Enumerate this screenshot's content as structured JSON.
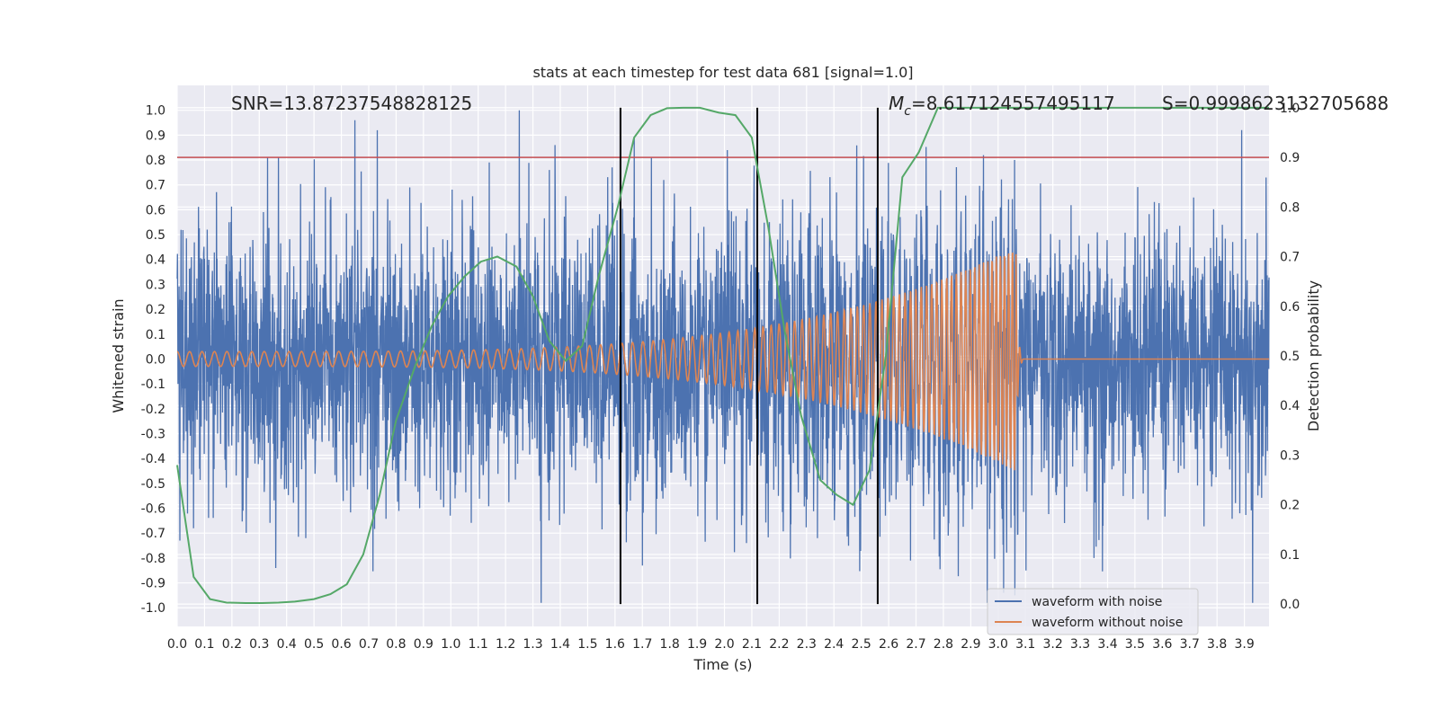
{
  "chart_data": {
    "type": "line",
    "title": "stats at each timestep for test data 681 [signal=1.0]",
    "xlabel": "Time (s)",
    "ylabel": "Whitened strain",
    "y2label": "Detection probability",
    "xlim": [
      0.0,
      3.99
    ],
    "ylim": [
      -1.075,
      1.1
    ],
    "y2lim": [
      -0.045,
      1.045
    ],
    "xticks": [
      0.0,
      0.1,
      0.2,
      0.3,
      0.4,
      0.5,
      0.6,
      0.7,
      0.8,
      0.9,
      1.0,
      1.1,
      1.2,
      1.3,
      1.4,
      1.5,
      1.6,
      1.7,
      1.8,
      1.9,
      2.0,
      2.1,
      2.2,
      2.3,
      2.4,
      2.5,
      2.6,
      2.7,
      2.8,
      2.9,
      3.0,
      3.1,
      3.2,
      3.3,
      3.4,
      3.5,
      3.6,
      3.7,
      3.8,
      3.9
    ],
    "yticks": [
      -1.0,
      -0.9,
      -0.8,
      -0.7,
      -0.6,
      -0.5,
      -0.4,
      -0.3,
      -0.2,
      -0.1,
      0.0,
      0.1,
      0.2,
      0.3,
      0.4,
      0.5,
      0.6,
      0.7,
      0.8,
      0.9,
      1.0
    ],
    "y2ticks": [
      0.0,
      0.1,
      0.2,
      0.3,
      0.4,
      0.5,
      0.6,
      0.7,
      0.8,
      0.9,
      1.0
    ],
    "grid": true,
    "legend_position": "lower-right",
    "annotations": {
      "snr": "SNR=13.87237548828125",
      "mc_symbol": "M",
      "mc_sub": "c",
      "mc_value": "=8.617124557495117",
      "s": "S=0.9998623132705688"
    },
    "threshold": {
      "y2": 0.9,
      "color": "#c44e52"
    },
    "vertical_lines": [
      1.62,
      2.12,
      2.56
    ],
    "series": [
      {
        "name": "waveform with noise",
        "color": "#4c72b0",
        "kind": "noise",
        "noise_amplitude": 0.42,
        "peaks": [
          [
            0.01,
            -0.73
          ],
          [
            0.06,
            -0.68
          ],
          [
            0.11,
            0.52
          ],
          [
            0.19,
            0.55
          ],
          [
            0.24,
            -0.61
          ],
          [
            0.33,
            0.81
          ],
          [
            0.36,
            -0.84
          ],
          [
            0.37,
            0.81
          ],
          [
            0.47,
            -0.72
          ],
          [
            0.56,
            0.64
          ],
          [
            0.65,
            0.96
          ],
          [
            0.73,
            -0.59
          ],
          [
            0.85,
            0.69
          ],
          [
            1.14,
            0.79
          ],
          [
            1.25,
            1.0
          ],
          [
            1.33,
            -0.98
          ],
          [
            1.36,
            0.76
          ],
          [
            1.67,
            0.89
          ],
          [
            1.7,
            -0.83
          ],
          [
            2.01,
            0.84
          ],
          [
            2.08,
            -0.74
          ],
          [
            2.34,
            -0.72
          ],
          [
            2.68,
            -0.81
          ],
          [
            2.96,
            -0.98
          ],
          [
            3.02,
            -0.94
          ],
          [
            3.06,
            0.8
          ],
          [
            3.35,
            -0.8
          ],
          [
            3.89,
            0.92
          ],
          [
            3.93,
            -0.98
          ]
        ],
        "x_range": [
          0.0,
          3.99
        ]
      },
      {
        "name": "waveform without noise",
        "color": "#dd8452",
        "kind": "chirp",
        "amplitude_start": 0.03,
        "amplitude_end": 0.45,
        "merger_time": 3.065,
        "ringdown_end": 3.09,
        "freq_start": 22,
        "freq_end": 70
      },
      {
        "name": "",
        "color": "#55a868",
        "kind": "probability",
        "axis": "y2",
        "x": [
          0.0,
          0.06,
          0.12,
          0.18,
          0.25,
          0.31,
          0.37,
          0.43,
          0.5,
          0.56,
          0.62,
          0.68,
          0.74,
          0.8,
          0.87,
          0.93,
          0.99,
          1.05,
          1.11,
          1.17,
          1.24,
          1.3,
          1.36,
          1.42,
          1.48,
          1.54,
          1.61,
          1.67,
          1.73,
          1.79,
          1.85,
          1.91,
          1.98,
          2.04,
          2.1,
          2.16,
          2.22,
          2.28,
          2.35,
          2.41,
          2.47,
          2.53,
          2.59,
          2.65,
          2.71,
          2.78,
          3.99
        ],
        "y": [
          0.28,
          0.055,
          0.01,
          0.003,
          0.002,
          0.002,
          0.003,
          0.005,
          0.01,
          0.02,
          0.04,
          0.1,
          0.22,
          0.37,
          0.48,
          0.56,
          0.62,
          0.66,
          0.69,
          0.7,
          0.68,
          0.62,
          0.53,
          0.49,
          0.52,
          0.66,
          0.8,
          0.94,
          0.985,
          0.999,
          1.0,
          1.0,
          0.99,
          0.985,
          0.94,
          0.76,
          0.55,
          0.38,
          0.25,
          0.22,
          0.2,
          0.27,
          0.5,
          0.86,
          0.91,
          1.0,
          1.0
        ]
      }
    ]
  }
}
